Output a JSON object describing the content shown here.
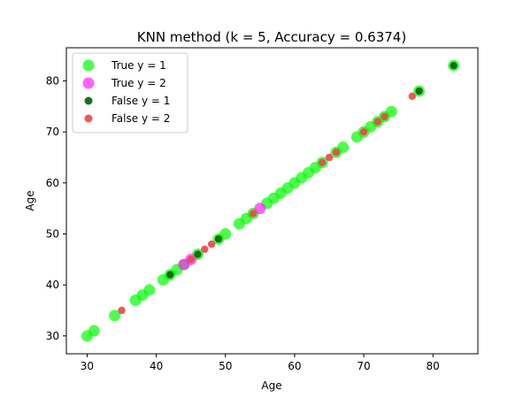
{
  "chart_data": {
    "type": "scatter",
    "title": "KNN method (k = 5, Accuracy = 0.6374)",
    "xlabel": "Age",
    "ylabel": "Age",
    "xlim": [
      27,
      86.5
    ],
    "ylim": [
      26.5,
      86.5
    ],
    "xticks": [
      30,
      40,
      50,
      60,
      70,
      80
    ],
    "yticks": [
      30,
      40,
      50,
      60,
      70,
      80
    ],
    "grid": false,
    "legend_position": "top-left",
    "series": [
      {
        "name": "True y = 1",
        "color": "#00ff00",
        "marker": "large-circle",
        "points": [
          [
            30,
            30
          ],
          [
            31,
            31
          ],
          [
            34,
            34
          ],
          [
            37,
            37
          ],
          [
            38,
            38
          ],
          [
            39,
            39
          ],
          [
            41,
            41
          ],
          [
            42,
            42
          ],
          [
            43,
            43
          ],
          [
            44,
            44
          ],
          [
            46,
            46
          ],
          [
            49,
            49
          ],
          [
            50,
            50
          ],
          [
            52,
            52
          ],
          [
            53,
            53
          ],
          [
            54,
            54
          ],
          [
            56,
            56
          ],
          [
            57,
            57
          ],
          [
            58,
            58
          ],
          [
            59,
            59
          ],
          [
            60,
            60
          ],
          [
            61,
            61
          ],
          [
            62,
            62
          ],
          [
            63,
            63
          ],
          [
            64,
            64
          ],
          [
            66,
            66
          ],
          [
            67,
            67
          ],
          [
            69,
            69
          ],
          [
            70,
            70
          ],
          [
            71,
            71
          ],
          [
            72,
            72
          ],
          [
            73,
            73
          ],
          [
            74,
            74
          ],
          [
            78,
            78
          ],
          [
            83,
            83
          ]
        ]
      },
      {
        "name": "True y = 2",
        "color": "#ff22ff",
        "marker": "large-circle",
        "points": [
          [
            44,
            44
          ],
          [
            45,
            45
          ],
          [
            55,
            55
          ]
        ]
      },
      {
        "name": "False y = 1",
        "color": "#006400",
        "marker": "small-circle",
        "points": [
          [
            42,
            42
          ],
          [
            46,
            46
          ],
          [
            49,
            49
          ],
          [
            78,
            78
          ],
          [
            83,
            83
          ]
        ]
      },
      {
        "name": "False y = 2",
        "color": "#ef4444",
        "marker": "small-circle",
        "points": [
          [
            35,
            35
          ],
          [
            45,
            45
          ],
          [
            47,
            47
          ],
          [
            48,
            48
          ],
          [
            54,
            54
          ],
          [
            64,
            64
          ],
          [
            65,
            65
          ],
          [
            66,
            66
          ],
          [
            70,
            70
          ],
          [
            72,
            72
          ],
          [
            73,
            73
          ],
          [
            77,
            77
          ]
        ]
      }
    ]
  }
}
